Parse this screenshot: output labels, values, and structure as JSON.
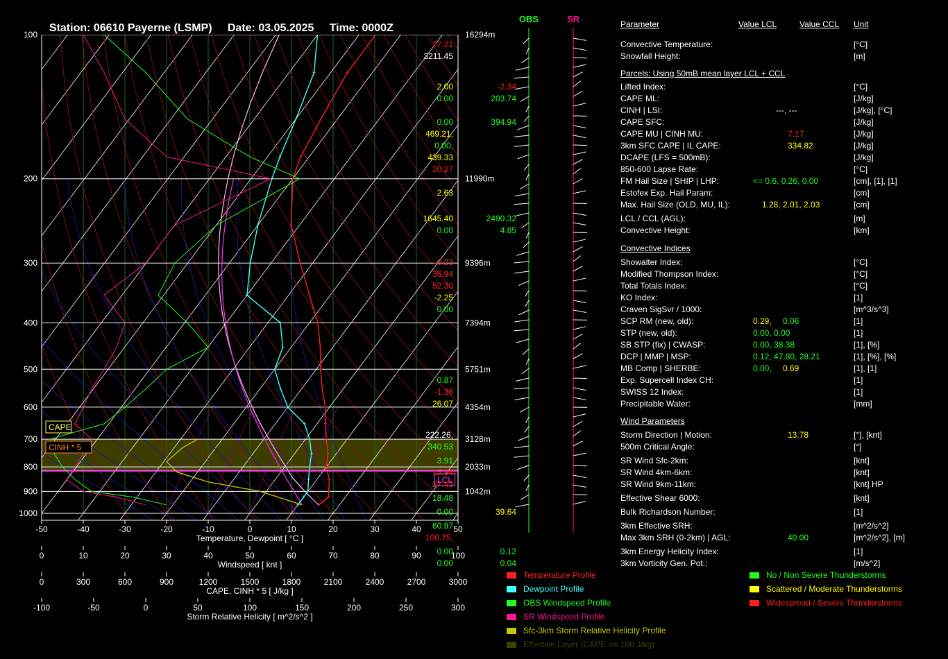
{
  "title": {
    "station": "Station: 06610 Payerne (LSMP)",
    "date": "Date: 03.05.2025",
    "time": "Time: 0000Z"
  },
  "colors": {
    "temperature": "#ff2020",
    "dewpoint": "#40ffff",
    "obs_wind": "#20ff20",
    "sr_wind": "#ff1493",
    "srh": "#c8c800",
    "effective": "#404000",
    "green": "#20ff20",
    "yellow": "#ffff00",
    "red": "#ff2020"
  },
  "chart_data": [
    {
      "type": "line",
      "title": "",
      "ylabel": "",
      "xlabel": "Temperature, Dewpoint  [ °C ]",
      "x_ticks": [
        "-50",
        "-40",
        "-30",
        "-20",
        "-10",
        "0",
        "10",
        "20",
        "30",
        "40",
        "50"
      ],
      "pressure_levels": [
        {
          "p": 100,
          "height": "16294m"
        },
        {
          "p": 200,
          "height": "11990m"
        },
        {
          "p": 300,
          "height": "9396m"
        },
        {
          "p": 400,
          "height": "7394m"
        },
        {
          "p": 500,
          "height": "5751m"
        },
        {
          "p": 600,
          "height": "4354m"
        },
        {
          "p": 700,
          "height": "3128m"
        },
        {
          "p": 800,
          "height": "2033m"
        },
        {
          "p": 900,
          "height": "1042m"
        },
        {
          "p": 1000,
          "height": ""
        }
      ],
      "xlim": [
        -50,
        50
      ],
      "ylim": [
        1050,
        100
      ],
      "y_scale": "log",
      "series": [
        {
          "key": "temperature",
          "points": [
            [
              960,
              15
            ],
            [
              925,
              16
            ],
            [
              900,
              15
            ],
            [
              850,
              13
            ],
            [
              800,
              10
            ],
            [
              750,
              8
            ],
            [
              700,
              5
            ],
            [
              650,
              2
            ],
            [
              600,
              -1
            ],
            [
              550,
              -5
            ],
            [
              500,
              -9
            ],
            [
              450,
              -13
            ],
            [
              400,
              -18
            ],
            [
              350,
              -25
            ],
            [
              300,
              -33
            ],
            [
              250,
              -42
            ],
            [
              200,
              -50
            ],
            [
              180,
              -52
            ],
            [
              150,
              -54
            ],
            [
              120,
              -56
            ],
            [
              100,
              -56
            ]
          ]
        },
        {
          "key": "dewpoint",
          "points": [
            [
              960,
              10
            ],
            [
              925,
              10
            ],
            [
              900,
              10
            ],
            [
              850,
              8
            ],
            [
              800,
              6
            ],
            [
              750,
              4
            ],
            [
              700,
              1
            ],
            [
              650,
              -3
            ],
            [
              600,
              -10
            ],
            [
              550,
              -15
            ],
            [
              500,
              -20
            ],
            [
              450,
              -22
            ],
            [
              400,
              -27
            ],
            [
              350,
              -40
            ],
            [
              300,
              -45
            ],
            [
              250,
              -50
            ],
            [
              200,
              -55
            ],
            [
              180,
              -57
            ],
            [
              150,
              -60
            ],
            [
              120,
              -64
            ],
            [
              100,
              -70
            ]
          ]
        }
      ],
      "labels": {
        "cape": "CAPE",
        "cinh": "CINH * 5",
        "lcl": "LCL"
      }
    }
  ],
  "axes": {
    "windspeed": {
      "label": "Windspeed  [ knt ]",
      "ticks": [
        "0",
        "10",
        "20",
        "30",
        "40",
        "50",
        "60",
        "70",
        "80",
        "90",
        "100"
      ]
    },
    "cape": {
      "label": "CAPE, CINH * 5  [ J/kg ]",
      "ticks": [
        "0",
        "300",
        "600",
        "900",
        "1200",
        "1500",
        "1800",
        "2100",
        "2400",
        "2700",
        "3000"
      ]
    },
    "srh": {
      "label": "Storm Relative Helicity  [ m^2/s^2 ]",
      "ticks": [
        "-100",
        "-50",
        "0",
        "50",
        "100",
        "150",
        "200",
        "250",
        "300"
      ]
    }
  },
  "wind_columns": {
    "obs": "OBS",
    "sr": "SR"
  },
  "table": {
    "headers": {
      "parameter": "Parameter",
      "lcl": "Value LCL",
      "ccl": "Value CCL",
      "unit": "Unit"
    },
    "rows": [
      {
        "y": 31,
        "p": "Convective Temperature:",
        "v1": "27.21",
        "c1": "red",
        "v2": "",
        "c2": "",
        "u": "[°C]"
      },
      {
        "y": 48,
        "p": "Snowfall Height:",
        "v1": "3211.45",
        "c1": "white",
        "v2": "",
        "c2": "",
        "u": "[m]"
      },
      {
        "y": 73,
        "p": "Parcels: Using 50mB mean layer LCL + CCL",
        "section": true
      },
      {
        "y": 92,
        "p": "Lifted Index:",
        "v1": "2.00",
        "c1": "yellow",
        "v2": "-2.34",
        "c2": "red",
        "u": "[°C]"
      },
      {
        "y": 109,
        "p": "CAPE ML:",
        "v1": "0.00",
        "c1": "green",
        "v2": "203.74",
        "c2": "green",
        "u": "[J/kg]"
      },
      {
        "y": 126,
        "p": "CINH | LSI:",
        "v1": "---,  ---",
        "c1": "white",
        "v2": "",
        "c2": "",
        "u": "[J/kg], [°C]",
        "v1x": 225
      },
      {
        "y": 143,
        "p": "CAPE SFC:",
        "v1": "0.00",
        "c1": "green",
        "v2": "394.94",
        "c2": "green",
        "u": "[J/kg]"
      },
      {
        "y": 160,
        "p": "CAPE MU | CINH MU:",
        "v1": "469.21,",
        "c1": "yellow",
        "v2": "7.17",
        "c2": "red",
        "u": "[J/kg]",
        "v2x": 242
      },
      {
        "y": 177,
        "p": "3km SFC CAPE | IL CAPE:",
        "v1": "0.00,",
        "c1": "green",
        "v2": "334.82",
        "c2": "yellow",
        "u": "[J/kg]",
        "v2x": 242
      },
      {
        "y": 194,
        "p": "DCAPE (LFS = 500mB):",
        "v1": "439.33",
        "c1": "yellow",
        "v2": "",
        "c2": "",
        "u": "[J/kg]"
      },
      {
        "y": 211,
        "p": "850-600 Lapse Rate:",
        "v1": "20.27",
        "c1": "red",
        "v2": "",
        "c2": "",
        "u": "[°C]"
      },
      {
        "y": 228,
        "p": "FM Hail Size | SHIP | LHP:",
        "v1": "<= 0.6,  0.26,  0.00",
        "c1": "green",
        "v2": "",
        "c2": "",
        "u": "[cm], [1], [1]",
        "v1x": 192
      },
      {
        "y": 245,
        "p": "Estofex Exp. Hail Param:",
        "v1": "2.63",
        "c1": "yellow",
        "v2": "",
        "c2": "",
        "u": "[cm]"
      },
      {
        "y": 262,
        "p": "Max. Hail Size (OLD, MU, IL):",
        "v1": "1.28,  2.01,  2.03",
        "c1": "yellow",
        "v2": "",
        "c2": "",
        "u": "[cm]",
        "v1x": 205
      },
      {
        "y": 282,
        "p": "LCL / CCL (AGL):",
        "v1": "1645.40",
        "c1": "yellow",
        "v2": "2490.32",
        "c2": "green",
        "u": "[m]"
      },
      {
        "y": 299,
        "p": "Convective Height:",
        "v1": "0.00",
        "c1": "green",
        "v2": "4.85",
        "c2": "green",
        "u": "[km]"
      },
      {
        "y": 325,
        "p": "Convective Indices",
        "section": true
      },
      {
        "y": 345,
        "p": "Showalter Index:",
        "v1": "-0.23",
        "c1": "red",
        "v2": "",
        "c2": "",
        "u": "[°C]"
      },
      {
        "y": 362,
        "p": "Modified Thompson Index:",
        "v1": "36.94",
        "c1": "red",
        "v2": "",
        "c2": "",
        "u": "[°C]"
      },
      {
        "y": 379,
        "p": "Total Totals Index:",
        "v1": "52.30",
        "c1": "red",
        "v2": "",
        "c2": "",
        "u": "[°C]"
      },
      {
        "y": 396,
        "p": "KO Index:",
        "v1": "-2.25",
        "c1": "yellow",
        "v2": "",
        "c2": "",
        "u": "[1]"
      },
      {
        "y": 413,
        "p": "Craven SigSvr / 1000:",
        "v1": "0.00",
        "c1": "green",
        "v2": "",
        "c2": "",
        "u": "[m^3/s^3]"
      },
      {
        "y": 430,
        "p": "SCP RM (new, old):",
        "v1": "0.29,  0.06",
        "c1": "yellow",
        "v2": "",
        "c2": "",
        "u": "[1]",
        "v1x": 192,
        "mix": [
          [
            "0.29,",
            "yellow"
          ],
          [
            "0.06",
            "green"
          ]
        ]
      },
      {
        "y": 447,
        "p": "STP (new, old):",
        "v1": "0.00,  0.00",
        "c1": "green",
        "v2": "",
        "c2": "",
        "u": "[1]",
        "v1x": 192
      },
      {
        "y": 464,
        "p": "SB STP (fix) | CWASP:",
        "v1": "0.00,  38.38",
        "c1": "green",
        "v2": "",
        "c2": "",
        "u": "[1], [%]",
        "v1x": 192
      },
      {
        "y": 481,
        "p": "DCP | MMP | MSP:",
        "v1": "0.12,  47.80,  28.21",
        "c1": "green",
        "v2": "",
        "c2": "",
        "u": "[1], [%], [%]",
        "v1x": 192
      },
      {
        "y": 498,
        "p": "MB Comp | SHERBE:",
        "v1": "0.00,  0.69",
        "c1": "green",
        "v2": "",
        "c2": "",
        "u": "[1], [1]",
        "v1x": 192,
        "mix": [
          [
            "0.00,",
            "green"
          ],
          [
            "0.69",
            "yellow"
          ]
        ]
      },
      {
        "y": 515,
        "p": "Exp. Supercell Index CH:",
        "v1": "0.87",
        "c1": "green",
        "v2": "",
        "c2": "",
        "u": "[1]"
      },
      {
        "y": 532,
        "p": "SWISS 12 Index:",
        "v1": "-1.36",
        "c1": "red",
        "v2": "",
        "c2": "",
        "u": "[1]"
      },
      {
        "y": 549,
        "p": "Precipitable Water:",
        "v1": "26.07",
        "c1": "yellow",
        "v2": "",
        "c2": "",
        "u": "[mm]"
      },
      {
        "y": 574,
        "p": "Wind Parameters",
        "section": true
      },
      {
        "y": 594,
        "p": "Storm Direction | Motion:",
        "v1": "222.26,",
        "c1": "white",
        "v2": "13.78",
        "c2": "yellow",
        "u": "[°], [knt]",
        "v2x": 242
      },
      {
        "y": 611,
        "p": "500m Critical Angle:",
        "v1": "340.53",
        "c1": "green",
        "v2": "",
        "c2": "",
        "u": "[°]"
      },
      {
        "y": 631,
        "p": "SR Wind Sfc-2km:",
        "v1": "3.91",
        "c1": "green",
        "v2": "",
        "c2": "",
        "u": "[knt]"
      },
      {
        "y": 648,
        "p": "SR Wind 4km-6km:",
        "v1": "15.94",
        "c1": "red",
        "v2": "",
        "c2": "",
        "u": "[knt]"
      },
      {
        "y": 665,
        "p": "SR Wind 9km-11km:",
        "v1": "27.43",
        "c1": "red",
        "v2": "",
        "c2": "",
        "u": "[knt] HP"
      },
      {
        "y": 685,
        "p": "Effective Shear 6000:",
        "v1": "18.48",
        "c1": "green",
        "v2": "",
        "c2": "",
        "u": "[knt]"
      },
      {
        "y": 705,
        "p": "Bulk Richardson Number:",
        "v1": "0.00",
        "c1": "green",
        "v2": "39.64",
        "c2": "yellow",
        "u": "[1]"
      },
      {
        "y": 725,
        "p": "3km Effective SRH:",
        "v1": "60.97",
        "c1": "green",
        "v2": "",
        "c2": "",
        "u": "[m^2/s^2]"
      },
      {
        "y": 742,
        "p": "Max 3km SRH (0-2km) | AGL:",
        "v1": "100.75,",
        "c1": "red",
        "v2": "40.00",
        "c2": "green",
        "u": "[m^2/s^2], [m]",
        "v2x": 242
      },
      {
        "y": 762,
        "p": "3km Energy Helicity Index:",
        "v1": "0.00",
        "c1": "green",
        "v2": "0.12",
        "c2": "green",
        "u": "[1]"
      },
      {
        "y": 779,
        "p": "3km Vorticity Gen. Pot.:",
        "v1": "0.00",
        "c1": "green",
        "v2": "0.04",
        "c2": "green",
        "u": "[m/s^2]"
      }
    ]
  },
  "legend_left": [
    {
      "label": "Temperature Profile",
      "color": "#ff2020"
    },
    {
      "label": "Dewpoint Profile",
      "color": "#40ffff"
    },
    {
      "label": "OBS Windspeed Profile",
      "color": "#20ff20"
    },
    {
      "label": "SR Windspeed Profile",
      "color": "#ff1493"
    },
    {
      "label": "Sfc-3km Storm Relative Helicity Profile",
      "color": "#c8c800"
    },
    {
      "label": "Effective Layer (CAPE >= 100 J/kg)",
      "color": "#404000"
    }
  ],
  "legend_right": [
    {
      "label": "No / Non Severe Thunderstorms",
      "color": "#20ff20"
    },
    {
      "label": "Scattered / Moderate Thunderstorms",
      "color": "#ffff00"
    },
    {
      "label": "Widespread / Severe Thunderstorms",
      "color": "#ff2020"
    }
  ]
}
